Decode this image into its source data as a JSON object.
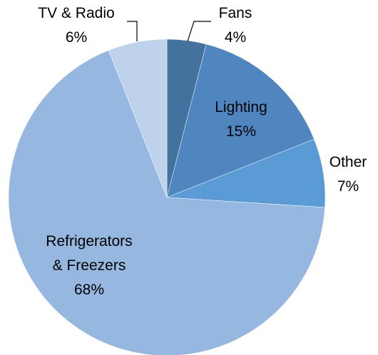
{
  "chart_data": {
    "type": "pie",
    "categories": [
      "Fans",
      "Lighting",
      "Other",
      "Refrigerators & Freezers",
      "TV & Radio"
    ],
    "values": [
      4,
      15,
      7,
      68,
      6
    ],
    "value_labels": [
      "4%",
      "15%",
      "7%",
      "68%",
      "6%"
    ],
    "colors": [
      "#44729f",
      "#4f86c0",
      "#5b9bd5",
      "#95b7e0",
      "#bfd2ec"
    ]
  }
}
